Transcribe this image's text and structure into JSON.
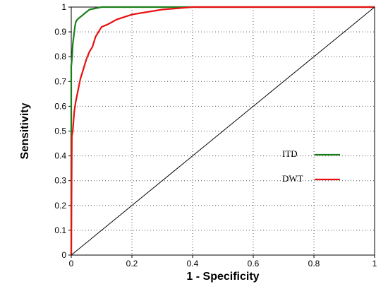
{
  "chart_data": {
    "type": "line",
    "xlabel": "1 - Specificity",
    "ylabel": "Sensitivity",
    "xlim": [
      0,
      1
    ],
    "ylim": [
      0,
      1
    ],
    "x_ticks": [
      "0",
      "0.2",
      "0.4",
      "0.6",
      "0.8",
      "1"
    ],
    "y_ticks": [
      "0",
      "0.1",
      "0.2",
      "0.3",
      "0.4",
      "0.5",
      "0.6",
      "0.7",
      "0.8",
      "0.9",
      "1"
    ],
    "grid": true,
    "legend_position": "right",
    "series": [
      {
        "name": "ITD",
        "color": "#1a7f1a",
        "points": [
          [
            0,
            0
          ],
          [
            0,
            0.76
          ],
          [
            0.003,
            0.8
          ],
          [
            0.005,
            0.85
          ],
          [
            0.008,
            0.88
          ],
          [
            0.01,
            0.9
          ],
          [
            0.012,
            0.92
          ],
          [
            0.015,
            0.94
          ],
          [
            0.02,
            0.95
          ],
          [
            0.03,
            0.96
          ],
          [
            0.04,
            0.97
          ],
          [
            0.05,
            0.98
          ],
          [
            0.06,
            0.99
          ],
          [
            0.08,
            0.995
          ],
          [
            0.1,
            1.0
          ],
          [
            1.0,
            1.0
          ]
        ]
      },
      {
        "name": "DWT",
        "color": "#e81010",
        "points": [
          [
            0,
            0
          ],
          [
            0.002,
            0.48
          ],
          [
            0.005,
            0.5
          ],
          [
            0.008,
            0.55
          ],
          [
            0.01,
            0.58
          ],
          [
            0.015,
            0.62
          ],
          [
            0.02,
            0.65
          ],
          [
            0.025,
            0.68
          ],
          [
            0.03,
            0.71
          ],
          [
            0.04,
            0.75
          ],
          [
            0.05,
            0.79
          ],
          [
            0.06,
            0.82
          ],
          [
            0.07,
            0.84
          ],
          [
            0.08,
            0.88
          ],
          [
            0.09,
            0.9
          ],
          [
            0.1,
            0.92
          ],
          [
            0.12,
            0.93
          ],
          [
            0.15,
            0.95
          ],
          [
            0.2,
            0.97
          ],
          [
            0.25,
            0.98
          ],
          [
            0.3,
            0.99
          ],
          [
            0.4,
            1.0
          ],
          [
            1.0,
            1.0
          ]
        ]
      },
      {
        "name": "",
        "color": "#000000",
        "points": [
          [
            0,
            0
          ],
          [
            1,
            1
          ]
        ]
      }
    ]
  }
}
